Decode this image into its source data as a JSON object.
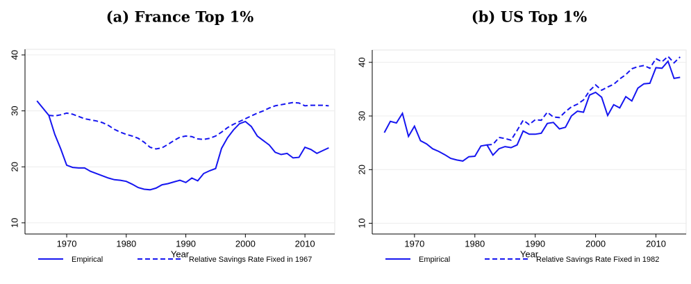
{
  "chart_data": [
    {
      "type": "line",
      "title": "(a) France Top 1%",
      "x_label": "Year",
      "x": [
        1965,
        1966,
        1967,
        1968,
        1969,
        1970,
        1971,
        1972,
        1973,
        1974,
        1975,
        1976,
        1977,
        1978,
        1979,
        1980,
        1981,
        1982,
        1983,
        1984,
        1985,
        1986,
        1987,
        1988,
        1989,
        1990,
        1991,
        1992,
        1993,
        1994,
        1995,
        1996,
        1997,
        1998,
        1999,
        2000,
        2001,
        2002,
        2003,
        2004,
        2005,
        2006,
        2007,
        2008,
        2009,
        2010,
        2011,
        2012,
        2013,
        2014
      ],
      "xlim": [
        1963,
        2015
      ],
      "xticks": [
        1970,
        1980,
        1990,
        2000,
        2010
      ],
      "ylim": [
        8,
        41
      ],
      "yticks": [
        10,
        20,
        30,
        40
      ],
      "grid": true,
      "series": [
        {
          "name": "Empirical",
          "color": "#1515f0",
          "line_style": "solid",
          "values": [
            31.8,
            30.5,
            29.2,
            25.8,
            23.2,
            20.3,
            19.9,
            19.8,
            19.8,
            19.2,
            18.8,
            18.4,
            18.0,
            17.7,
            17.6,
            17.4,
            16.9,
            16.3,
            16.0,
            15.9,
            16.2,
            16.8,
            17.0,
            17.3,
            17.6,
            17.2,
            18.0,
            17.5,
            18.8,
            19.3,
            19.7,
            23.3,
            25.2,
            26.6,
            27.7,
            28.1,
            27.2,
            25.5,
            24.7,
            23.9,
            22.6,
            22.2,
            22.4,
            21.6,
            21.7,
            23.5,
            23.1,
            22.4,
            22.9,
            23.4
          ]
        },
        {
          "name": "Relative Savings Rate Fixed in 1967",
          "color": "#1515f0",
          "line_style": "dashed",
          "values": [
            null,
            null,
            29.2,
            29.1,
            29.3,
            29.6,
            29.4,
            29.0,
            28.6,
            28.4,
            28.2,
            27.9,
            27.4,
            26.7,
            26.2,
            25.8,
            25.5,
            25.1,
            24.4,
            23.5,
            23.2,
            23.4,
            24.0,
            24.7,
            25.3,
            25.5,
            25.4,
            25.0,
            24.9,
            25.1,
            25.5,
            26.2,
            27.0,
            27.6,
            28.1,
            28.6,
            29.1,
            29.6,
            30.0,
            30.5,
            30.9,
            31.1,
            31.3,
            31.5,
            31.4,
            30.9,
            31.0,
            31.0,
            31.0,
            30.9
          ]
        }
      ]
    },
    {
      "type": "line",
      "title": "(b) US Top 1%",
      "x_label": "Year",
      "x": [
        1965,
        1966,
        1967,
        1968,
        1969,
        1970,
        1971,
        1972,
        1973,
        1974,
        1975,
        1976,
        1977,
        1978,
        1979,
        1980,
        1981,
        1982,
        1983,
        1984,
        1985,
        1986,
        1987,
        1988,
        1989,
        1990,
        1991,
        1992,
        1993,
        1994,
        1995,
        1996,
        1997,
        1998,
        1999,
        2000,
        2001,
        2002,
        2003,
        2004,
        2005,
        2006,
        2007,
        2008,
        2009,
        2010,
        2011,
        2012,
        2013,
        2014
      ],
      "xlim": [
        1963,
        2015
      ],
      "xticks": [
        1970,
        1980,
        1990,
        2000,
        2010
      ],
      "ylim": [
        8,
        42.3
      ],
      "yticks": [
        10,
        20,
        30,
        40
      ],
      "grid": true,
      "series": [
        {
          "name": "Empirical",
          "color": "#1515f0",
          "line_style": "solid",
          "values": [
            26.9,
            29.0,
            28.7,
            30.5,
            26.2,
            28.1,
            25.4,
            24.8,
            23.9,
            23.4,
            22.8,
            22.1,
            21.8,
            21.6,
            22.4,
            22.5,
            24.4,
            24.6,
            22.7,
            23.9,
            24.3,
            24.1,
            24.6,
            27.2,
            26.6,
            26.6,
            26.8,
            28.6,
            28.8,
            27.6,
            27.9,
            30.0,
            30.9,
            30.7,
            33.9,
            34.4,
            33.5,
            30.1,
            32.1,
            31.5,
            33.6,
            32.8,
            35.2,
            36.0,
            36.1,
            39.0,
            38.9,
            40.2,
            37.0,
            37.2
          ]
        },
        {
          "name": "Relative Savings Rate Fixed in 1982",
          "color": "#1515f0",
          "line_style": "dashed",
          "values": [
            null,
            null,
            null,
            null,
            null,
            null,
            null,
            null,
            null,
            null,
            null,
            null,
            null,
            null,
            null,
            null,
            null,
            24.6,
            24.7,
            26.0,
            25.8,
            25.5,
            27.3,
            29.2,
            28.4,
            29.3,
            29.2,
            30.7,
            29.8,
            29.7,
            30.8,
            31.7,
            32.2,
            33.0,
            34.7,
            35.8,
            34.8,
            35.4,
            35.9,
            36.9,
            37.7,
            38.8,
            39.2,
            39.4,
            38.9,
            40.7,
            40.1,
            41.1,
            39.9,
            41.0
          ]
        }
      ]
    }
  ]
}
